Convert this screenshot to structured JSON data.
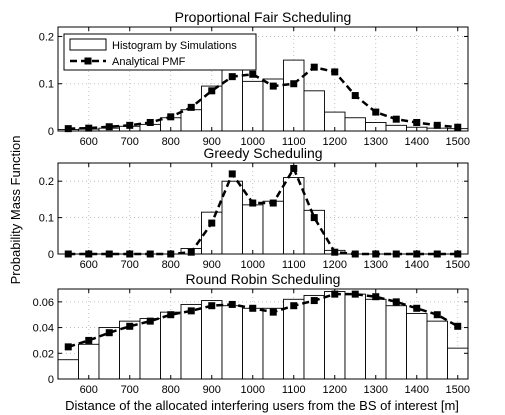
{
  "figure": {
    "shared_xlabel": "Distance of the allocated interfering users from the BS of interest [m]",
    "shared_ylabel": "Probability Mass Function"
  },
  "legend": {
    "entries": [
      "Histogram by Simulations",
      "Analytical PMF"
    ]
  },
  "chart_data": [
    {
      "type": "bar",
      "title": "Proportional Fair Scheduling",
      "xlim": [
        525,
        1525
      ],
      "ylim": [
        0,
        0.22
      ],
      "xticks": [
        600,
        700,
        800,
        900,
        1000,
        1100,
        1200,
        1300,
        1400,
        1500
      ],
      "yticks": [
        0,
        0.1,
        0.2
      ],
      "ytick_labels": [
        "0",
        "0.1",
        "0.2"
      ],
      "grid": true,
      "legend_position": "top-left",
      "bin_width": 50,
      "x": [
        550,
        600,
        650,
        700,
        750,
        800,
        850,
        900,
        950,
        1000,
        1050,
        1100,
        1150,
        1200,
        1250,
        1300,
        1350,
        1400,
        1450,
        1500
      ],
      "series": [
        {
          "name": "Histogram by Simulations",
          "kind": "histogram",
          "values": [
            0.003,
            0.004,
            0.006,
            0.01,
            0.014,
            0.028,
            0.045,
            0.095,
            0.13,
            0.105,
            0.11,
            0.15,
            0.085,
            0.04,
            0.028,
            0.018,
            0.012,
            0.008,
            0.006,
            0.005
          ]
        },
        {
          "name": "Analytical PMF",
          "kind": "line",
          "values": [
            0.005,
            0.006,
            0.009,
            0.012,
            0.018,
            0.03,
            0.05,
            0.085,
            0.115,
            0.12,
            0.095,
            0.1,
            0.135,
            0.125,
            0.075,
            0.04,
            0.025,
            0.018,
            0.012,
            0.008
          ]
        }
      ]
    },
    {
      "type": "bar",
      "title": "Greedy Scheduling",
      "xlim": [
        525,
        1525
      ],
      "ylim": [
        0,
        0.25
      ],
      "xticks": [
        600,
        700,
        800,
        900,
        1000,
        1100,
        1200,
        1300,
        1400,
        1500
      ],
      "yticks": [
        0,
        0.1,
        0.2
      ],
      "ytick_labels": [
        "0",
        "0.1",
        "0.2"
      ],
      "grid": true,
      "bin_width": 50,
      "x": [
        550,
        600,
        650,
        700,
        750,
        800,
        850,
        900,
        950,
        1000,
        1050,
        1100,
        1150,
        1200,
        1250,
        1300,
        1350,
        1400,
        1450,
        1500
      ],
      "series": [
        {
          "name": "Histogram by Simulations",
          "kind": "histogram",
          "values": [
            0,
            0,
            0,
            0,
            0,
            0,
            0.015,
            0.115,
            0.2,
            0.135,
            0.145,
            0.21,
            0.12,
            0.01,
            0,
            0,
            0,
            0,
            0,
            0
          ]
        },
        {
          "name": "Analytical PMF",
          "kind": "line",
          "values": [
            0,
            0,
            0,
            0,
            0,
            0,
            0.005,
            0.085,
            0.22,
            0.14,
            0.14,
            0.235,
            0.1,
            0.005,
            0,
            0,
            0,
            0,
            0,
            0
          ]
        }
      ]
    },
    {
      "type": "bar",
      "title": "Round Robin Scheduling",
      "xlim": [
        525,
        1525
      ],
      "ylim": [
        0,
        0.07
      ],
      "xticks": [
        600,
        700,
        800,
        900,
        1000,
        1100,
        1200,
        1300,
        1400,
        1500
      ],
      "yticks": [
        0,
        0.02,
        0.04,
        0.06
      ],
      "ytick_labels": [
        "0",
        "0.02",
        "0.04",
        "0.06"
      ],
      "grid": true,
      "bin_width": 50,
      "x": [
        550,
        600,
        650,
        700,
        750,
        800,
        850,
        900,
        950,
        1000,
        1050,
        1100,
        1150,
        1200,
        1250,
        1300,
        1350,
        1400,
        1450,
        1500
      ],
      "series": [
        {
          "name": "Histogram by Simulations",
          "kind": "histogram",
          "values": [
            0.015,
            0.027,
            0.04,
            0.045,
            0.047,
            0.052,
            0.058,
            0.061,
            0.057,
            0.055,
            0.055,
            0.062,
            0.065,
            0.068,
            0.066,
            0.062,
            0.057,
            0.051,
            0.045,
            0.024
          ]
        },
        {
          "name": "Analytical PMF",
          "kind": "line",
          "values": [
            0.025,
            0.03,
            0.036,
            0.041,
            0.045,
            0.05,
            0.053,
            0.057,
            0.058,
            0.055,
            0.052,
            0.057,
            0.061,
            0.066,
            0.066,
            0.064,
            0.06,
            0.055,
            0.05,
            0.041
          ]
        }
      ]
    }
  ]
}
